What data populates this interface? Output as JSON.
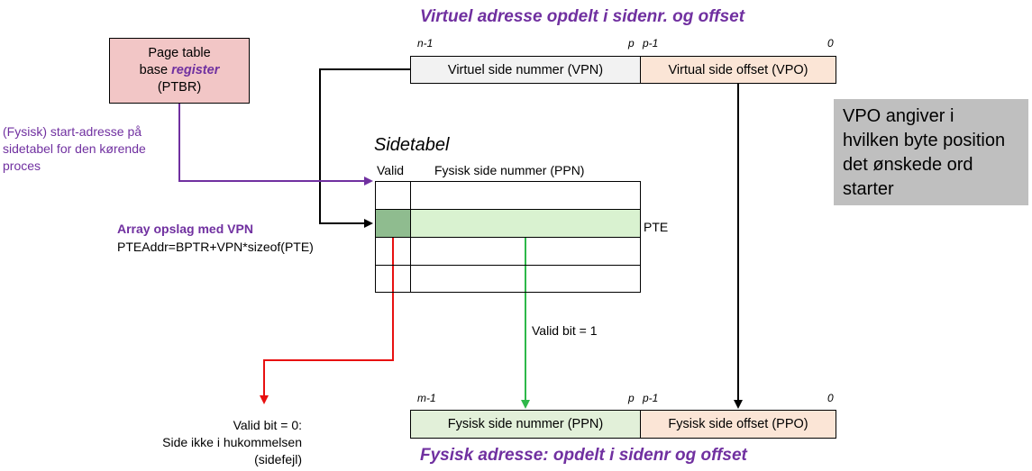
{
  "virtual": {
    "title": "Virtuel adresse opdelt i sidenr. og offset",
    "bit_left": "n-1",
    "bit_p": "p",
    "bit_p1": "p-1",
    "bit_zero": "0",
    "vpn_label": "Virtuel side nummer (VPN)",
    "vpo_label": "Virtual side offset (VPO)"
  },
  "ptbr": {
    "line1": "Page table",
    "line2_prefix": "base ",
    "line2_emph": "register",
    "line3": "(PTBR)"
  },
  "start_note": [
    "(Fysisk) start-adresse på",
    "sidetabel for den kørende",
    "proces"
  ],
  "lookup": {
    "heading": "Array opslag med VPN",
    "formula": "PTEAddr=BPTR+VPN*sizeof(PTE)"
  },
  "table": {
    "title": "Sidetabel",
    "col_valid": "Valid",
    "col_ppn": "Fysisk side nummer (PPN)",
    "pte_label": "PTE",
    "rows": 4,
    "highlight_row": 2
  },
  "vpo_note": [
    "VPO angiver i",
    "hvilken byte position",
    "det ønskede ord",
    "starter"
  ],
  "valid_one": "Valid bit = 1",
  "page_fault": [
    "Valid bit = 0:",
    "Side ikke i hukommelsen",
    "(sidefejl)"
  ],
  "physical": {
    "title": "Fysisk adresse: opdelt i sidenr og offset",
    "bit_left": "m-1",
    "bit_p": "p",
    "bit_p1": "p-1",
    "bit_zero": "0",
    "ppn_label": "Fysisk side nummer (PPN)",
    "ppo_label": "Fysisk side offset (PPO)"
  },
  "colors": {
    "purple": "#7030a0",
    "vpn_fill": "#f2f2f2",
    "offset_fill": "#fbe5d6",
    "ppn_fill": "#e2f0d9",
    "pte_fill": "#d9f2d0",
    "valid_cell_fill": "#8fbc8f",
    "ptbr_fill": "#f2c6c6",
    "note_fill": "#bfbfbf",
    "green_arrow": "#2eb84a",
    "red_arrow": "#e81010"
  }
}
